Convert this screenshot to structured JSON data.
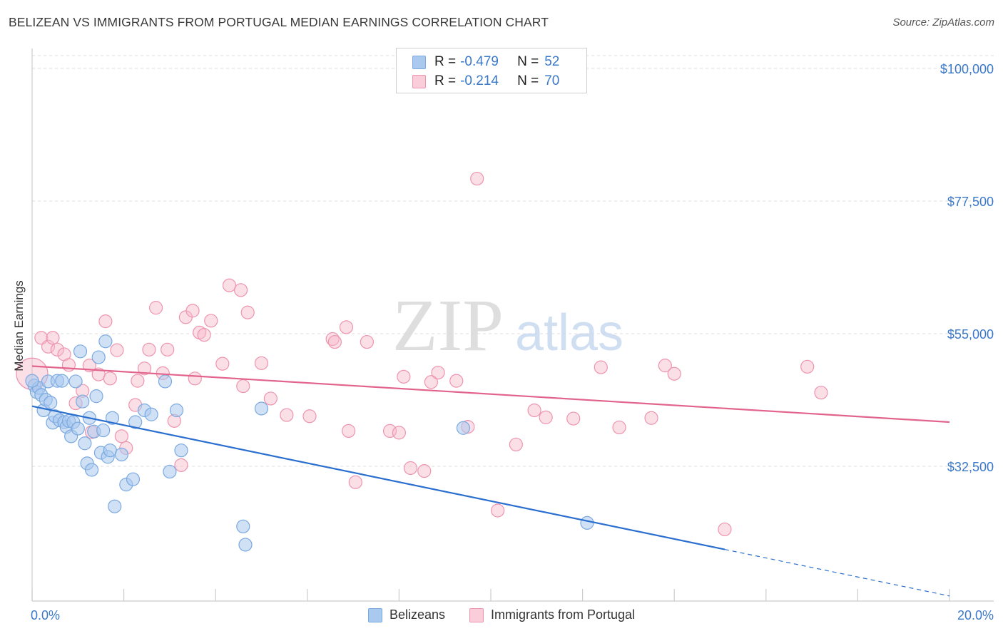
{
  "title": "BELIZEAN VS IMMIGRANTS FROM PORTUGAL MEDIAN EARNINGS CORRELATION CHART",
  "source": "Source: ZipAtlas.com",
  "watermark": {
    "zip": "ZIP",
    "atlas": "atlas"
  },
  "legend": {
    "rows": [
      {
        "r_label": "R =",
        "r_value": "-0.479",
        "n_label": "N =",
        "n_value": "52"
      },
      {
        "r_label": "R =",
        "r_value": "-0.214",
        "n_label": "N =",
        "n_value": "70"
      }
    ]
  },
  "colors": {
    "blue_fill": "#a9c9ef",
    "blue_stroke": "#7aa9e0",
    "blue_line": "#2a6fcf",
    "pink_fill": "#f6b8c9",
    "pink_stroke": "#ee94ae",
    "pink_line": "#e2648c",
    "tick_text": "#3a78c8",
    "grid": "#dcdcdc"
  },
  "chart_data": {
    "type": "scatter",
    "title": "BELIZEAN VS IMMIGRANTS FROM PORTUGAL MEDIAN EARNINGS CORRELATION CHART",
    "xlabel": "",
    "ylabel": "Median Earnings",
    "xlim": [
      0,
      20
    ],
    "ylim": [
      10000,
      105000
    ],
    "x_tick_labels": [
      "0.0%",
      "20.0%"
    ],
    "y_ticks": [
      32500,
      55000,
      77500,
      100000
    ],
    "y_tick_labels": [
      "$32,500",
      "$55,000",
      "$77,500",
      "$100,000"
    ],
    "grid": true,
    "legend_position": "top-center",
    "series": [
      {
        "name": "Belizeans",
        "color": "#a9c9ef",
        "points": [
          [
            0.05,
            46200
          ],
          [
            0.1,
            45100
          ],
          [
            0.15,
            45800
          ],
          [
            0.2,
            44600
          ],
          [
            0.25,
            42000
          ],
          [
            0.3,
            43800
          ],
          [
            0.35,
            46900
          ],
          [
            0.4,
            43300
          ],
          [
            0.45,
            39900
          ],
          [
            0.5,
            41000
          ],
          [
            0.55,
            47000
          ],
          [
            0.6,
            40300
          ],
          [
            0.65,
            47000
          ],
          [
            0.7,
            40000
          ],
          [
            0.75,
            39200
          ],
          [
            0.8,
            40200
          ],
          [
            0.85,
            37600
          ],
          [
            0.9,
            40000
          ],
          [
            0.95,
            46900
          ],
          [
            1.0,
            38900
          ],
          [
            1.05,
            52000
          ],
          [
            1.1,
            43500
          ],
          [
            1.15,
            36400
          ],
          [
            1.2,
            33000
          ],
          [
            1.25,
            40700
          ],
          [
            1.3,
            31900
          ],
          [
            1.35,
            38400
          ],
          [
            1.4,
            44400
          ],
          [
            1.45,
            51000
          ],
          [
            1.5,
            34800
          ],
          [
            1.55,
            38600
          ],
          [
            1.6,
            53700
          ],
          [
            1.65,
            34100
          ],
          [
            1.7,
            35200
          ],
          [
            1.75,
            40700
          ],
          [
            1.8,
            25700
          ],
          [
            1.95,
            34500
          ],
          [
            2.05,
            29400
          ],
          [
            2.2,
            30300
          ],
          [
            2.25,
            40000
          ],
          [
            2.45,
            42000
          ],
          [
            2.6,
            41300
          ],
          [
            2.9,
            46900
          ],
          [
            3.0,
            31600
          ],
          [
            3.15,
            42000
          ],
          [
            3.25,
            35200
          ],
          [
            4.6,
            22300
          ],
          [
            4.65,
            19200
          ],
          [
            5.0,
            42300
          ],
          [
            9.4,
            39000
          ],
          [
            12.1,
            22900
          ],
          [
            0.0,
            47000
          ]
        ],
        "trend": {
          "x_solid": [
            0.0,
            15.1
          ],
          "y_solid": [
            42700,
            18400
          ],
          "x_dashed": [
            15.1,
            20.0
          ],
          "y_dashed": [
            18400,
            10500
          ]
        }
      },
      {
        "name": "Immigrants from Portugal",
        "color": "#f6b8c9",
        "points": [
          [
            0.0,
            48200
          ],
          [
            0.2,
            54300
          ],
          [
            0.35,
            52800
          ],
          [
            0.45,
            54300
          ],
          [
            0.55,
            52300
          ],
          [
            0.7,
            51500
          ],
          [
            0.8,
            49700
          ],
          [
            0.95,
            43200
          ],
          [
            1.1,
            45300
          ],
          [
            1.25,
            49600
          ],
          [
            1.3,
            38300
          ],
          [
            1.45,
            48100
          ],
          [
            1.6,
            57100
          ],
          [
            1.7,
            47400
          ],
          [
            1.85,
            52200
          ],
          [
            1.95,
            37600
          ],
          [
            2.05,
            35600
          ],
          [
            2.25,
            42900
          ],
          [
            2.3,
            47000
          ],
          [
            2.45,
            49100
          ],
          [
            2.55,
            52300
          ],
          [
            2.7,
            59400
          ],
          [
            2.85,
            48300
          ],
          [
            2.95,
            52300
          ],
          [
            3.1,
            40200
          ],
          [
            3.25,
            32700
          ],
          [
            3.35,
            57800
          ],
          [
            3.5,
            58900
          ],
          [
            3.55,
            47400
          ],
          [
            3.65,
            55200
          ],
          [
            3.75,
            54800
          ],
          [
            3.9,
            57200
          ],
          [
            4.15,
            49900
          ],
          [
            4.3,
            63200
          ],
          [
            4.55,
            62400
          ],
          [
            4.6,
            46100
          ],
          [
            4.7,
            58600
          ],
          [
            5.0,
            50000
          ],
          [
            5.2,
            44000
          ],
          [
            5.55,
            41200
          ],
          [
            6.05,
            41000
          ],
          [
            6.55,
            54100
          ],
          [
            6.6,
            53600
          ],
          [
            6.85,
            56100
          ],
          [
            6.9,
            38500
          ],
          [
            7.05,
            29800
          ],
          [
            7.3,
            53600
          ],
          [
            7.8,
            38500
          ],
          [
            8.0,
            38200
          ],
          [
            8.1,
            47700
          ],
          [
            8.25,
            32200
          ],
          [
            8.55,
            31700
          ],
          [
            8.7,
            46800
          ],
          [
            8.85,
            48400
          ],
          [
            9.25,
            47000
          ],
          [
            9.5,
            39200
          ],
          [
            9.7,
            81300
          ],
          [
            10.15,
            25000
          ],
          [
            10.55,
            36200
          ],
          [
            10.95,
            42000
          ],
          [
            11.2,
            40800
          ],
          [
            11.8,
            40600
          ],
          [
            12.4,
            49300
          ],
          [
            12.8,
            39100
          ],
          [
            13.5,
            40700
          ],
          [
            13.8,
            49600
          ],
          [
            14.0,
            48200
          ],
          [
            15.1,
            21800
          ],
          [
            16.9,
            49400
          ],
          [
            17.2,
            45000
          ]
        ],
        "trend": {
          "x_solid": [
            0.0,
            20.0
          ],
          "y_solid": [
            49500,
            40000
          ]
        }
      }
    ]
  },
  "bottom_legend": {
    "items": [
      "Belizeans",
      "Immigrants from Portugal"
    ]
  }
}
